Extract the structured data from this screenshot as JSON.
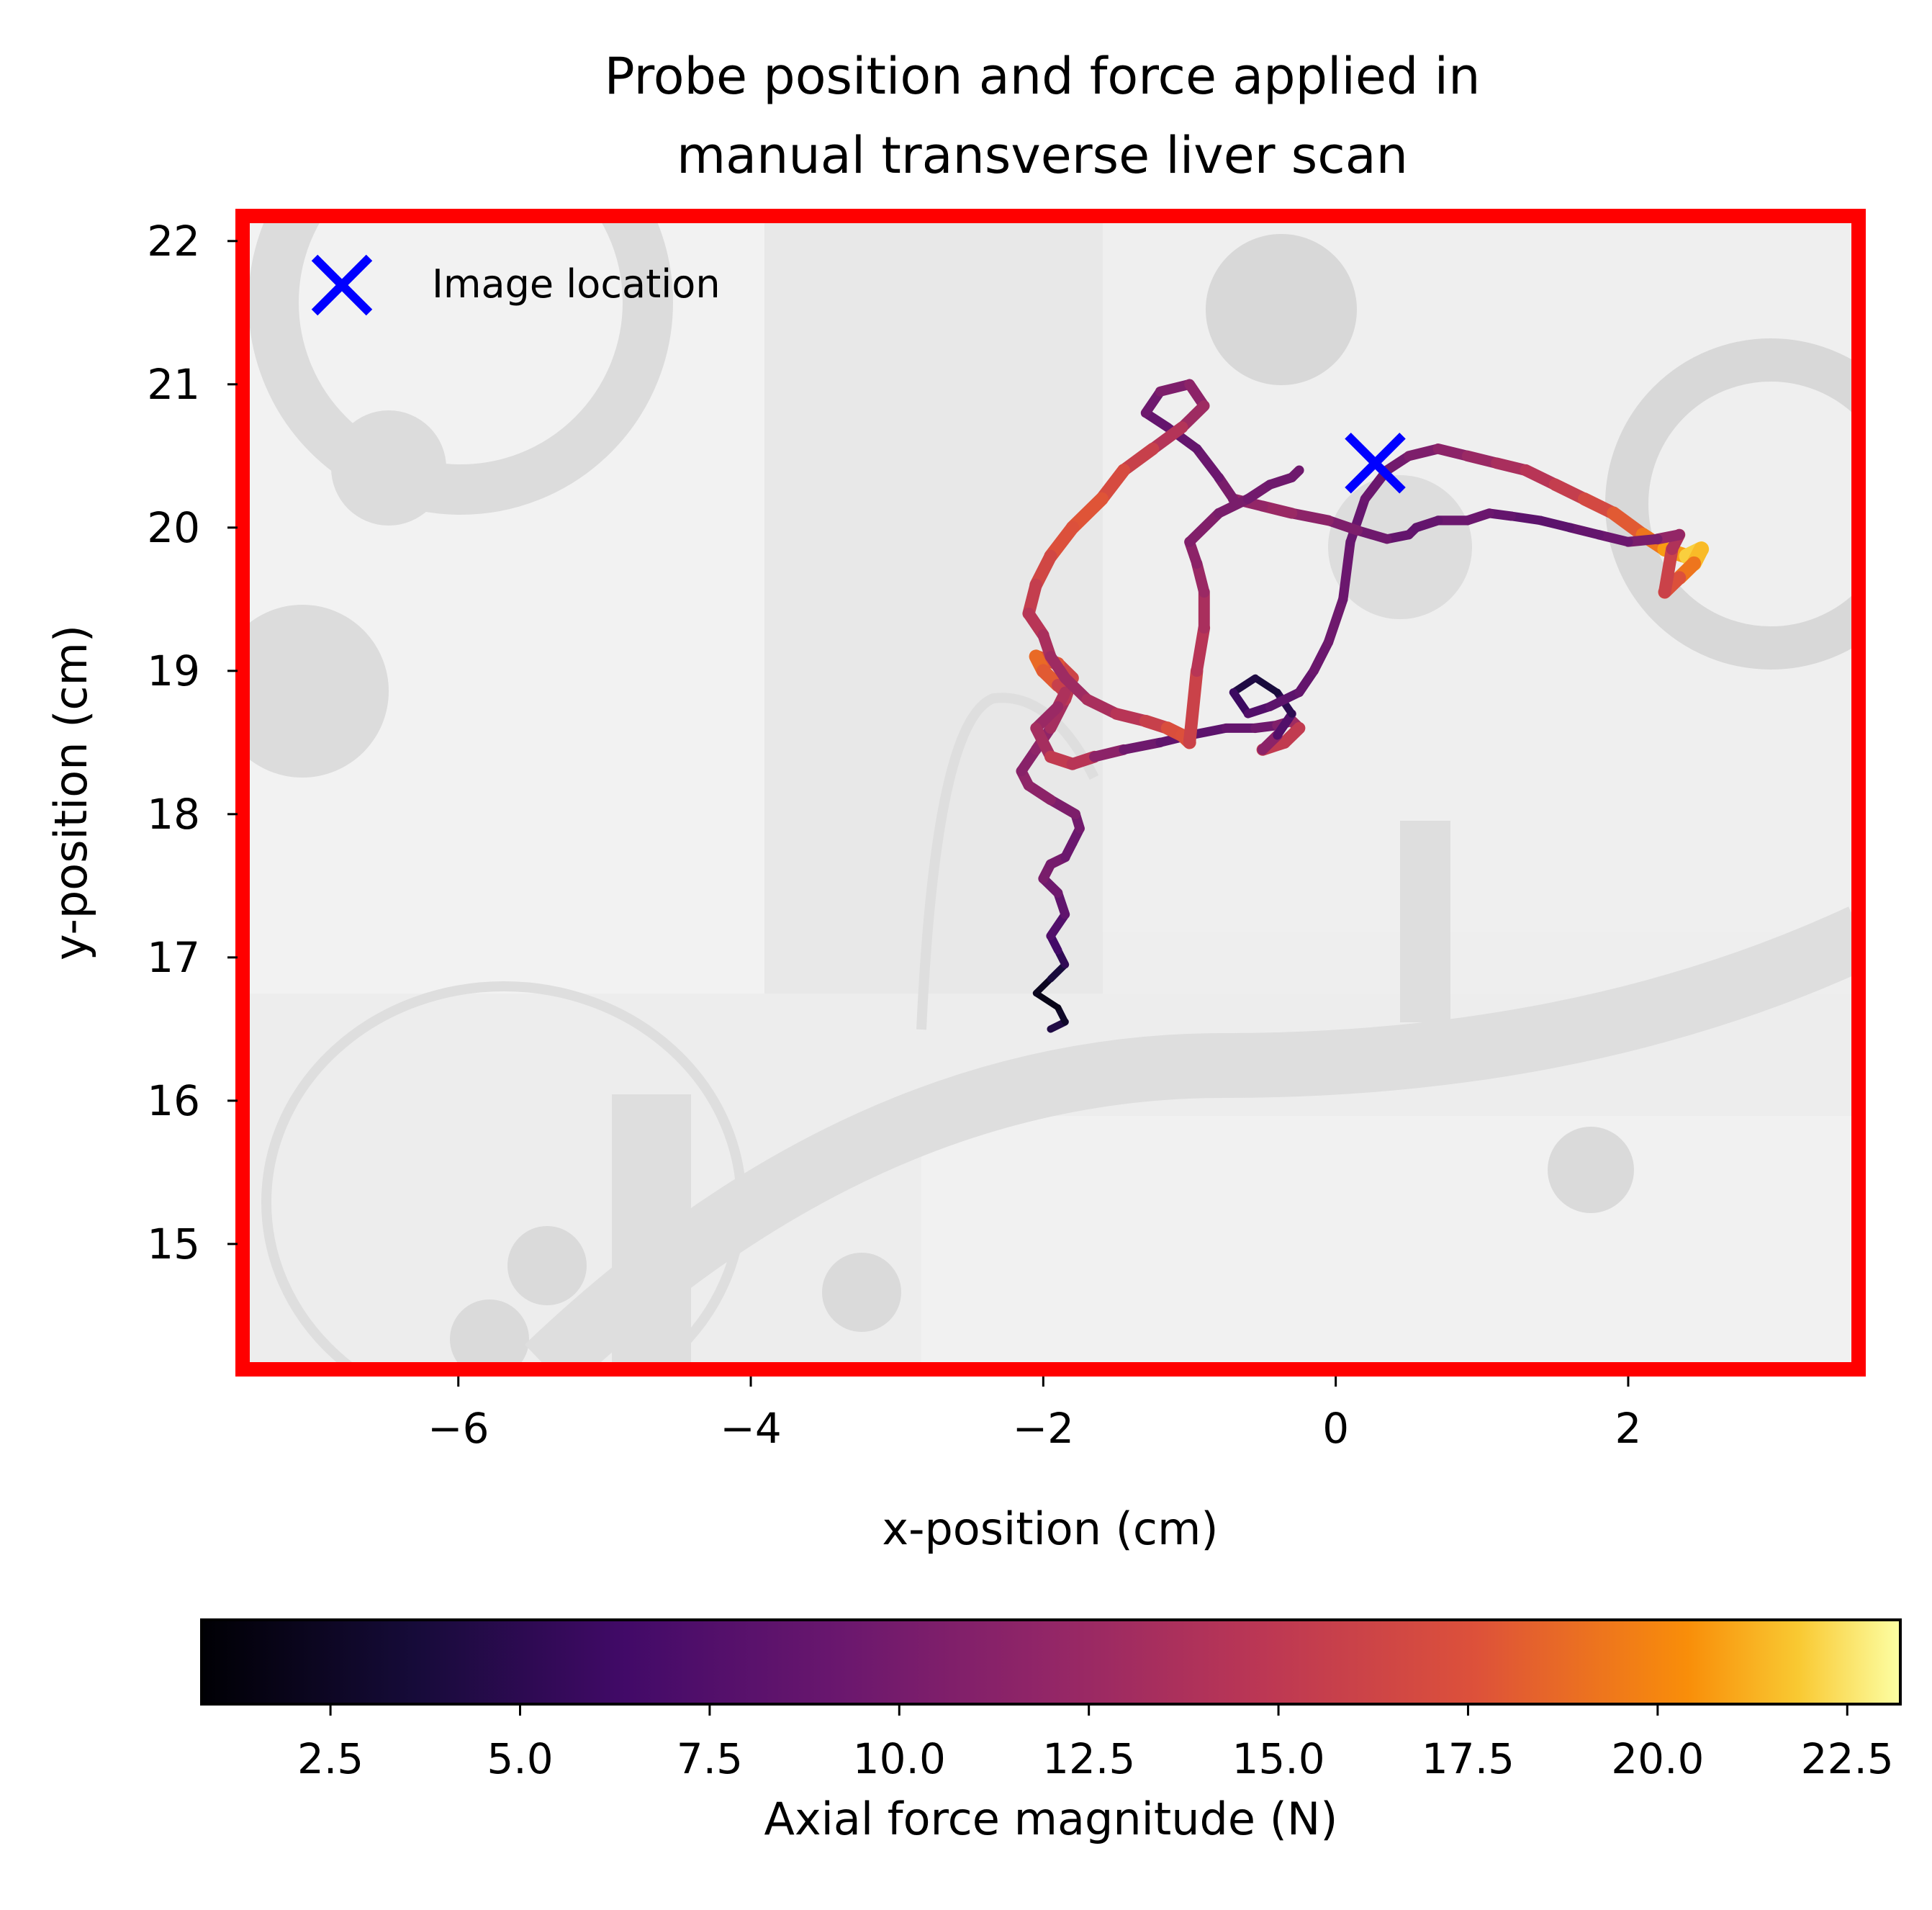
{
  "chart_data": {
    "type": "line",
    "title_lines": [
      "Probe position and force applied in",
      "manual transverse liver scan"
    ],
    "xlabel": "x-position (cm)",
    "ylabel": "y-position (cm)",
    "xlim": [
      -7.5,
      3.6
    ],
    "ylim": [
      14.1,
      22.2
    ],
    "xticks": [
      -6,
      -4,
      -2,
      0,
      2
    ],
    "xtick_labels": [
      "−6",
      "−4",
      "−2",
      "0",
      "2"
    ],
    "yticks": [
      15,
      16,
      17,
      18,
      19,
      20,
      21,
      22
    ],
    "ytick_labels": [
      "15",
      "16",
      "17",
      "18",
      "19",
      "20",
      "21",
      "22"
    ],
    "plot_frame_color": "#ff0000",
    "background": "grayscale ultrasound phantom image",
    "legend": {
      "position": "upper-left",
      "entries": [
        {
          "label": "Image location",
          "marker": "x",
          "color": "#0000ff"
        }
      ]
    },
    "image_location": {
      "x": 0.27,
      "y": 20.45
    },
    "trajectory": {
      "colormap": "inferno",
      "x": [
        -1.95,
        -1.85,
        -1.9,
        -2.05,
        -1.95,
        -1.85,
        -1.9,
        -1.95,
        -1.85,
        -1.9,
        -2.0,
        -1.95,
        -1.85,
        -1.8,
        -1.75,
        -1.78,
        -1.95,
        -2.1,
        -2.15,
        -2.05,
        -1.95,
        -1.85,
        -1.8,
        -1.9,
        -2.05,
        -2.0,
        -1.9,
        -1.85,
        -1.9,
        -2.05,
        -1.95,
        -1.8,
        -1.65,
        -1.45,
        -1.2,
        -1.0,
        -0.75,
        -0.55,
        -0.4,
        -0.3,
        -0.25,
        -0.35,
        -0.5,
        -0.4,
        -0.3,
        -0.4,
        -0.55,
        -0.7,
        -0.6,
        -0.45,
        -0.25,
        -0.15,
        -0.05,
        0.05,
        0.1,
        0.2,
        0.35,
        0.5,
        0.7,
        0.9,
        1.1,
        1.3,
        1.5,
        1.7,
        1.9,
        2.1,
        2.25,
        2.4,
        2.5,
        2.45,
        2.35,
        2.25,
        2.3,
        2.35,
        2.2,
        2.0,
        1.8,
        1.6,
        1.4,
        1.2,
        1.05,
        0.9,
        0.7,
        0.55,
        0.5,
        0.35,
        0.15,
        -0.05,
        -0.3,
        -0.5,
        -0.7,
        -0.8,
        -0.95,
        -1.15,
        -1.3,
        -1.2,
        -1.0,
        -0.9,
        -1.05,
        -1.25,
        -1.45,
        -1.6,
        -1.8,
        -1.95,
        -2.05,
        -2.1,
        -2.0,
        -1.95,
        -1.85,
        -1.7,
        -1.5,
        -1.3,
        -1.15,
        -1.05,
        -1.0,
        -0.95,
        -0.9,
        -0.9,
        -0.95,
        -1.0,
        -0.8,
        -0.6,
        -0.45,
        -0.3,
        -0.25
      ],
      "y": [
        16.5,
        16.55,
        16.65,
        16.75,
        16.85,
        16.95,
        17.05,
        17.15,
        17.3,
        17.45,
        17.55,
        17.65,
        17.7,
        17.8,
        17.9,
        18.0,
        18.1,
        18.2,
        18.3,
        18.45,
        18.6,
        18.8,
        18.95,
        19.05,
        19.1,
        19.0,
        18.9,
        18.85,
        18.75,
        18.6,
        18.4,
        18.35,
        18.4,
        18.45,
        18.5,
        18.55,
        18.6,
        18.6,
        18.62,
        18.65,
        18.6,
        18.5,
        18.45,
        18.55,
        18.7,
        18.85,
        18.95,
        18.85,
        18.7,
        18.75,
        18.85,
        19.0,
        19.2,
        19.5,
        19.9,
        20.2,
        20.4,
        20.5,
        20.55,
        20.5,
        20.45,
        20.4,
        20.3,
        20.2,
        20.1,
        19.95,
        19.85,
        19.8,
        19.85,
        19.75,
        19.65,
        19.55,
        19.85,
        19.95,
        19.92,
        19.9,
        19.95,
        20.0,
        20.05,
        20.08,
        20.1,
        20.05,
        20.05,
        20.0,
        19.95,
        19.92,
        19.98,
        20.05,
        20.1,
        20.15,
        20.2,
        20.35,
        20.55,
        20.7,
        20.8,
        20.95,
        21.0,
        20.85,
        20.7,
        20.55,
        20.4,
        20.2,
        20.0,
        19.8,
        19.6,
        19.4,
        19.25,
        19.1,
        18.95,
        18.8,
        18.7,
        18.65,
        18.6,
        18.55,
        18.5,
        19.0,
        19.3,
        19.55,
        19.75,
        19.9,
        20.1,
        20.2,
        20.3,
        20.35,
        20.4
      ],
      "force": [
        5.0,
        3.5,
        2.0,
        1.5,
        3.0,
        4.5,
        6.0,
        7.0,
        8.0,
        9.0,
        10.0,
        10.5,
        9.5,
        9.0,
        9.5,
        10.0,
        11.0,
        12.0,
        11.5,
        11.0,
        12.5,
        14.0,
        15.5,
        17.0,
        18.5,
        19.0,
        17.0,
        14.5,
        13.0,
        12.0,
        14.5,
        16.0,
        13.0,
        10.0,
        9.0,
        8.0,
        8.5,
        9.0,
        10.0,
        11.5,
        14.0,
        16.5,
        14.0,
        9.0,
        6.0,
        4.0,
        3.5,
        5.0,
        7.0,
        8.0,
        8.5,
        9.0,
        9.5,
        9.5,
        9.0,
        9.0,
        9.5,
        10.0,
        11.0,
        12.0,
        13.0,
        14.0,
        15.0,
        16.0,
        17.5,
        18.5,
        20.0,
        21.5,
        22.5,
        20.5,
        18.0,
        17.0,
        15.0,
        13.0,
        11.0,
        9.5,
        9.0,
        8.5,
        8.0,
        8.5,
        9.0,
        9.5,
        9.0,
        8.5,
        8.5,
        9.0,
        10.0,
        11.0,
        12.0,
        13.0,
        11.0,
        9.5,
        9.0,
        8.5,
        9.0,
        10.0,
        11.0,
        12.0,
        13.5,
        15.0,
        16.5,
        17.5,
        18.0,
        17.0,
        16.0,
        15.0,
        14.0,
        13.0,
        12.5,
        13.0,
        14.0,
        15.0,
        16.5,
        18.0,
        17.0,
        15.0,
        14.0,
        13.0,
        12.0,
        11.0,
        10.5,
        10.0,
        9.5,
        9.5,
        9.5
      ]
    },
    "colorbar": {
      "label": "Axial force magnitude (N)",
      "range": [
        0.8,
        23.2
      ],
      "ticks": [
        2.5,
        5.0,
        7.5,
        10.0,
        12.5,
        15.0,
        17.5,
        20.0,
        22.5
      ],
      "tick_labels": [
        "2.5",
        "5.0",
        "7.5",
        "10.0",
        "12.5",
        "15.0",
        "17.5",
        "20.0",
        "22.5"
      ]
    }
  }
}
